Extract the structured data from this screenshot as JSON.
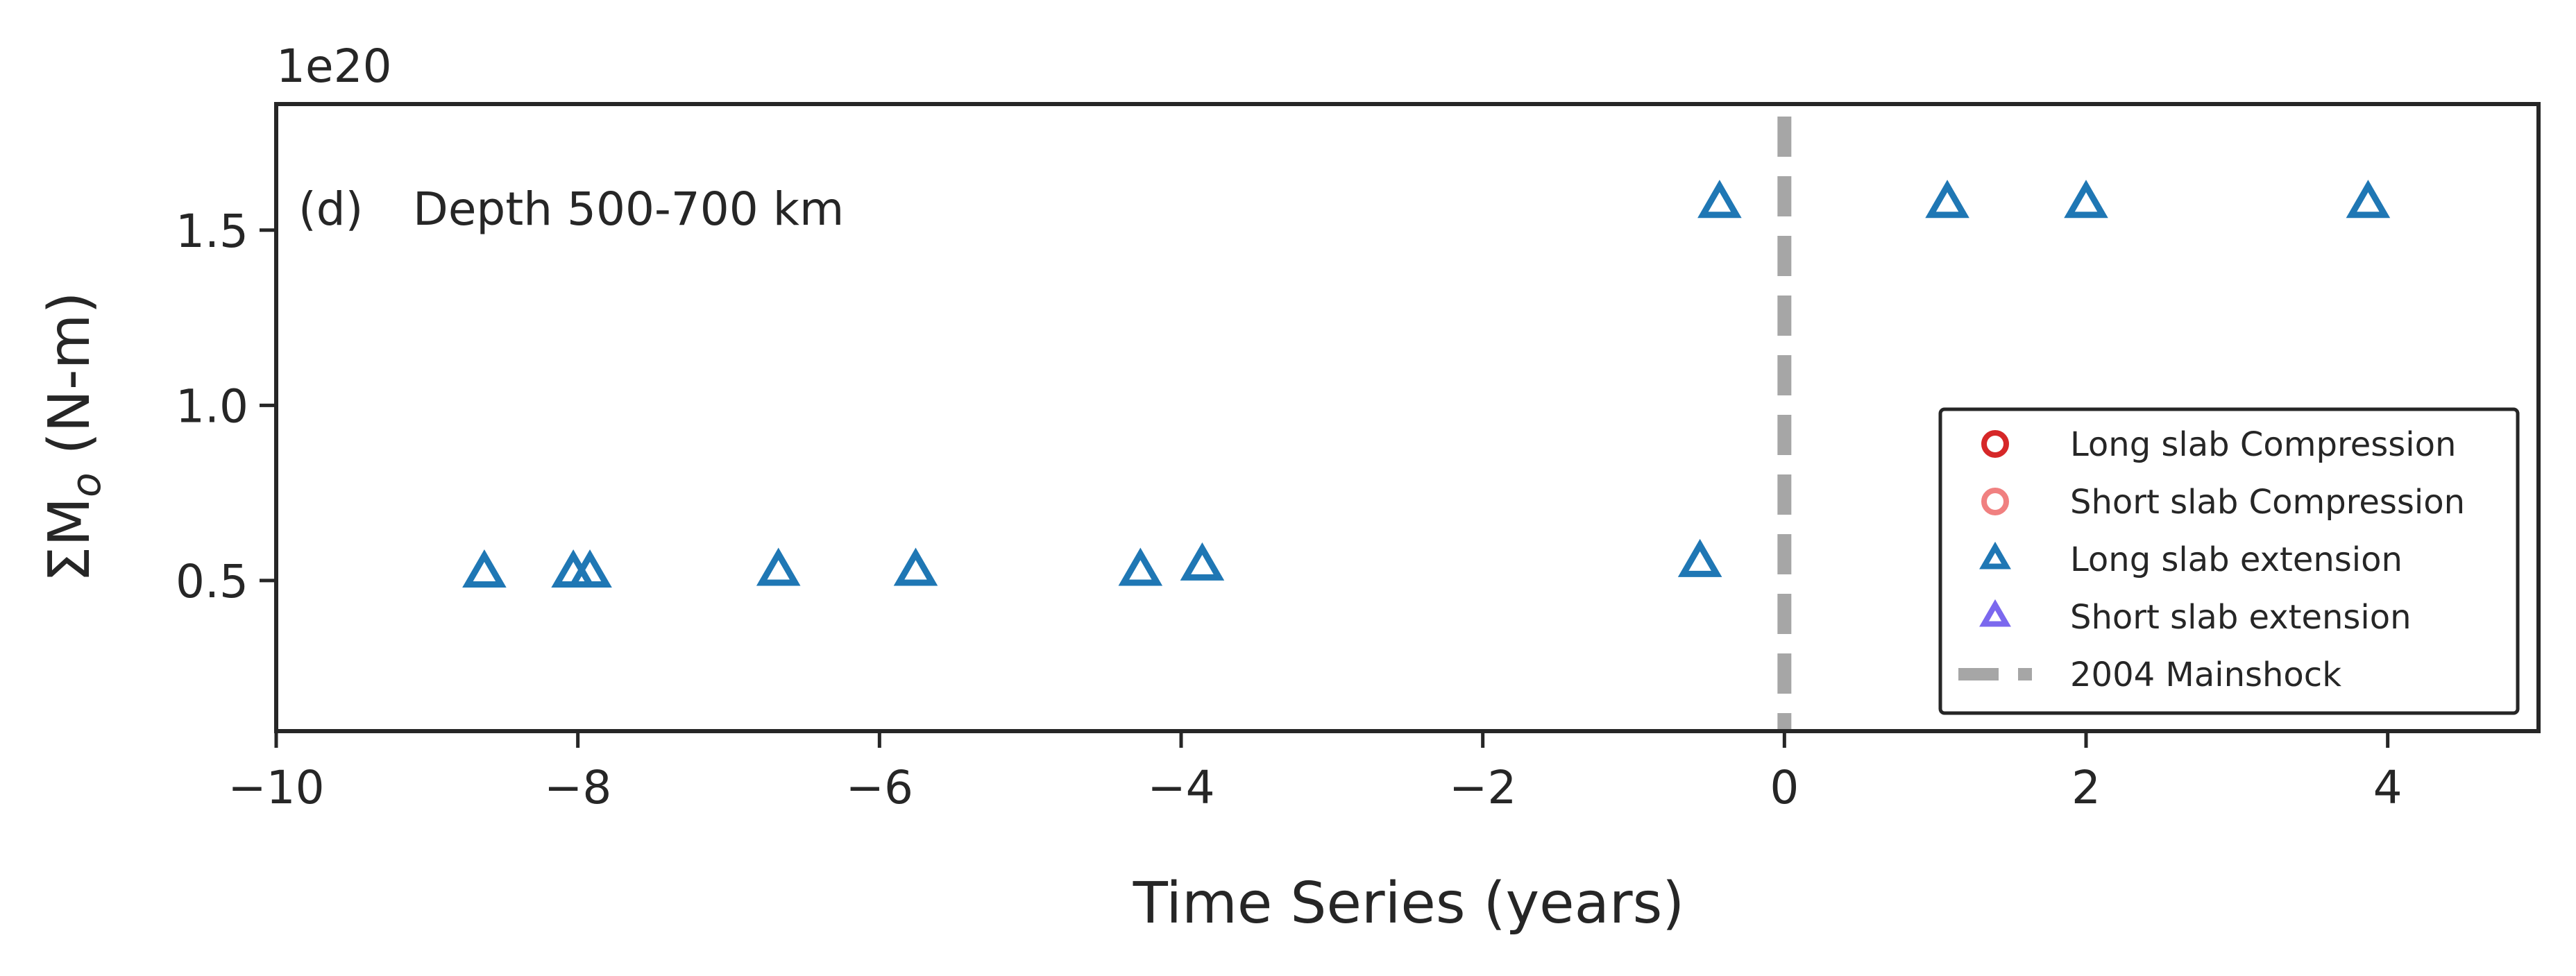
{
  "chart_data": {
    "type": "scatter",
    "panel_label": "(d)",
    "annotation": "Depth 500-700 km",
    "xlabel": "Time Series (years)",
    "ylabel_prefix": "ΣM",
    "ylabel_sub": "o",
    "ylabel_suffix": " (N-m)",
    "offset_text": "1e20",
    "xlim": [
      -10,
      5
    ],
    "ylim": [
      0.07,
      1.86
    ],
    "y_scale_multiplier": 1e+20,
    "xticks": [
      -10,
      -8,
      -6,
      -4,
      -2,
      0,
      2,
      4
    ],
    "xtick_labels": [
      "−10",
      "−8",
      "−6",
      "−4",
      "−2",
      "0",
      "2",
      "4"
    ],
    "yticks": [
      0.5,
      1.0,
      1.5
    ],
    "ytick_labels": [
      "0.5",
      "1.0",
      "1.5"
    ],
    "grid": false,
    "legend_position": "lower-right",
    "mainshock_x": 0,
    "series": [
      {
        "name": "Long slab Compression",
        "marker": "circle",
        "color": "#d62728",
        "points": []
      },
      {
        "name": "Short slab Compression",
        "marker": "circle",
        "color": "#f08080",
        "points": []
      },
      {
        "name": "Long slab extension",
        "marker": "triangle",
        "color": "#1f77b4",
        "points": [
          [
            -8.62,
            0.52
          ],
          [
            -8.03,
            0.52
          ],
          [
            -7.92,
            0.52
          ],
          [
            -6.67,
            0.525
          ],
          [
            -5.76,
            0.525
          ],
          [
            -4.27,
            0.525
          ],
          [
            -3.86,
            0.54
          ],
          [
            -0.56,
            0.55
          ],
          [
            -0.43,
            1.575
          ],
          [
            1.08,
            1.575
          ],
          [
            2.0,
            1.575
          ],
          [
            3.87,
            1.575
          ]
        ]
      },
      {
        "name": "Short slab extension",
        "marker": "triangle",
        "color": "#7b68ee",
        "points": []
      },
      {
        "name": "2004 Mainshock",
        "marker": "dashed-line",
        "color": "#a6a6a6",
        "points": []
      }
    ]
  }
}
